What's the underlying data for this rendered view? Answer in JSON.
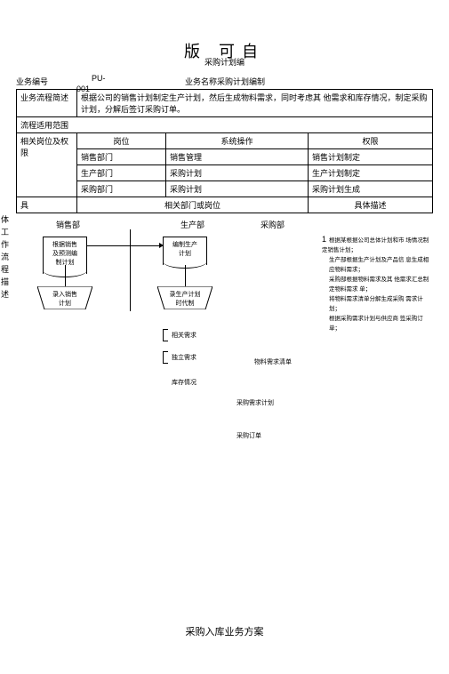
{
  "header": {
    "big": "版   可自",
    "sub": "采购计划编"
  },
  "meta": {
    "bizNoLabel": "业务编号",
    "bizNo": "PU-",
    "num": "001",
    "bizNameLabel": "业务名称",
    "bizName": "采购计划编制"
  },
  "descLabel": "业务流程简述",
  "descText": "根据公司的销售计划制定生产计划，然后生成物料需求，同时考虑其 他需求和库存情况，制定采购计划，分解后签订采购订单。",
  "scopeLabel": "流程适用范围",
  "roleHeader": {
    "role": "相关岗位及权 限",
    "c1": "岗位",
    "c2": "系统操作",
    "c3": "权限"
  },
  "roles": [
    {
      "c1": "销售部门",
      "c2": "销售管理",
      "c3": "销售计划制定"
    },
    {
      "c1": "生产部门",
      "c2": "采购计划",
      "c3": "生产计划制定"
    },
    {
      "c1": "采购部门",
      "c2": "采购计划",
      "c3": "采购计划生成"
    }
  ],
  "flowHeader": {
    "left": "相关部门或岗位",
    "right": "具体描述"
  },
  "vertLabel": "具体工作流程描述",
  "cols": {
    "c1": "销售部",
    "c2": "生产部",
    "c3": "采购部"
  },
  "boxes": {
    "b1": "根据销售\n及预测编\n制计划",
    "b2": "录入销售\n计划",
    "b3": "编制生产\n计划",
    "b4": "录生产计划\n时代制"
  },
  "labels": {
    "l1": "相关需求",
    "l2": "独立需求",
    "l3": "库存情况",
    "l4": "物料需求清单",
    "l5": "采购需求计划",
    "l6": "采购订单"
  },
  "descList": [
    "根据某根据公司总体计划和市 场情况制定销售计划；",
    "生产部根据生产计划及产品信 息生成相应物料需求；",
    "采购部根据物料需求及其 他需求汇总制定物料需求 单；",
    "将物料需求清单分解生成采购 需求计划；",
    "根据采购需求计划与供应商 签采购订单；"
  ],
  "footer": "采购入库业务方案"
}
